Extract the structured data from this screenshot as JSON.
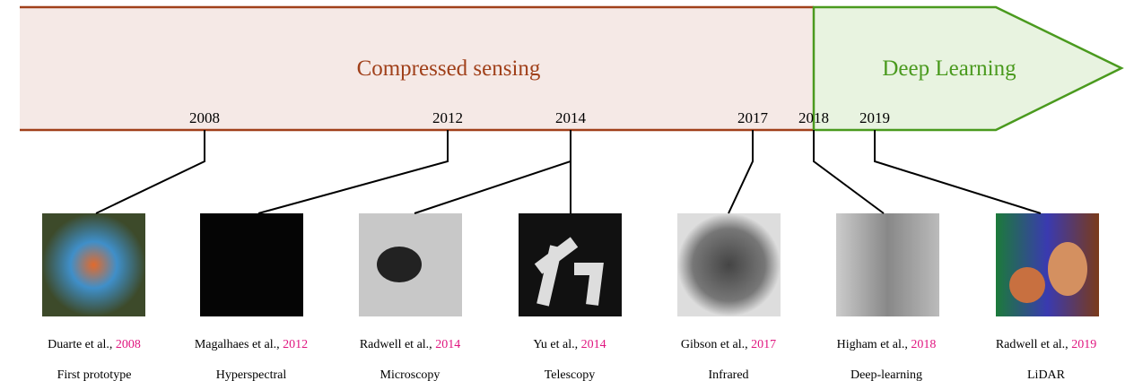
{
  "eras": [
    {
      "label": "Compressed sensing"
    },
    {
      "label": "Deep Learning"
    }
  ],
  "years": [
    "2008",
    "2012",
    "2014",
    "2017",
    "2018",
    "2019"
  ],
  "items": [
    {
      "authors": "Duarte et al.,",
      "year": "2008",
      "application": "First prototype"
    },
    {
      "authors": "Magalhaes et al.,",
      "year": "2012",
      "application": "Hyperspectral"
    },
    {
      "authors": "Radwell et al.,",
      "year": "2014",
      "application": "Microscopy"
    },
    {
      "authors": "Yu et al.,",
      "year": "2014",
      "application": "Telescopy"
    },
    {
      "authors": "Gibson et al.,",
      "year": "2017",
      "application": "Infrared"
    },
    {
      "authors": "Higham et al.,",
      "year": "2018",
      "application": "Deep-learning"
    },
    {
      "authors": "Radwell et al.,",
      "year": "2019",
      "application": "LiDAR"
    }
  ]
}
